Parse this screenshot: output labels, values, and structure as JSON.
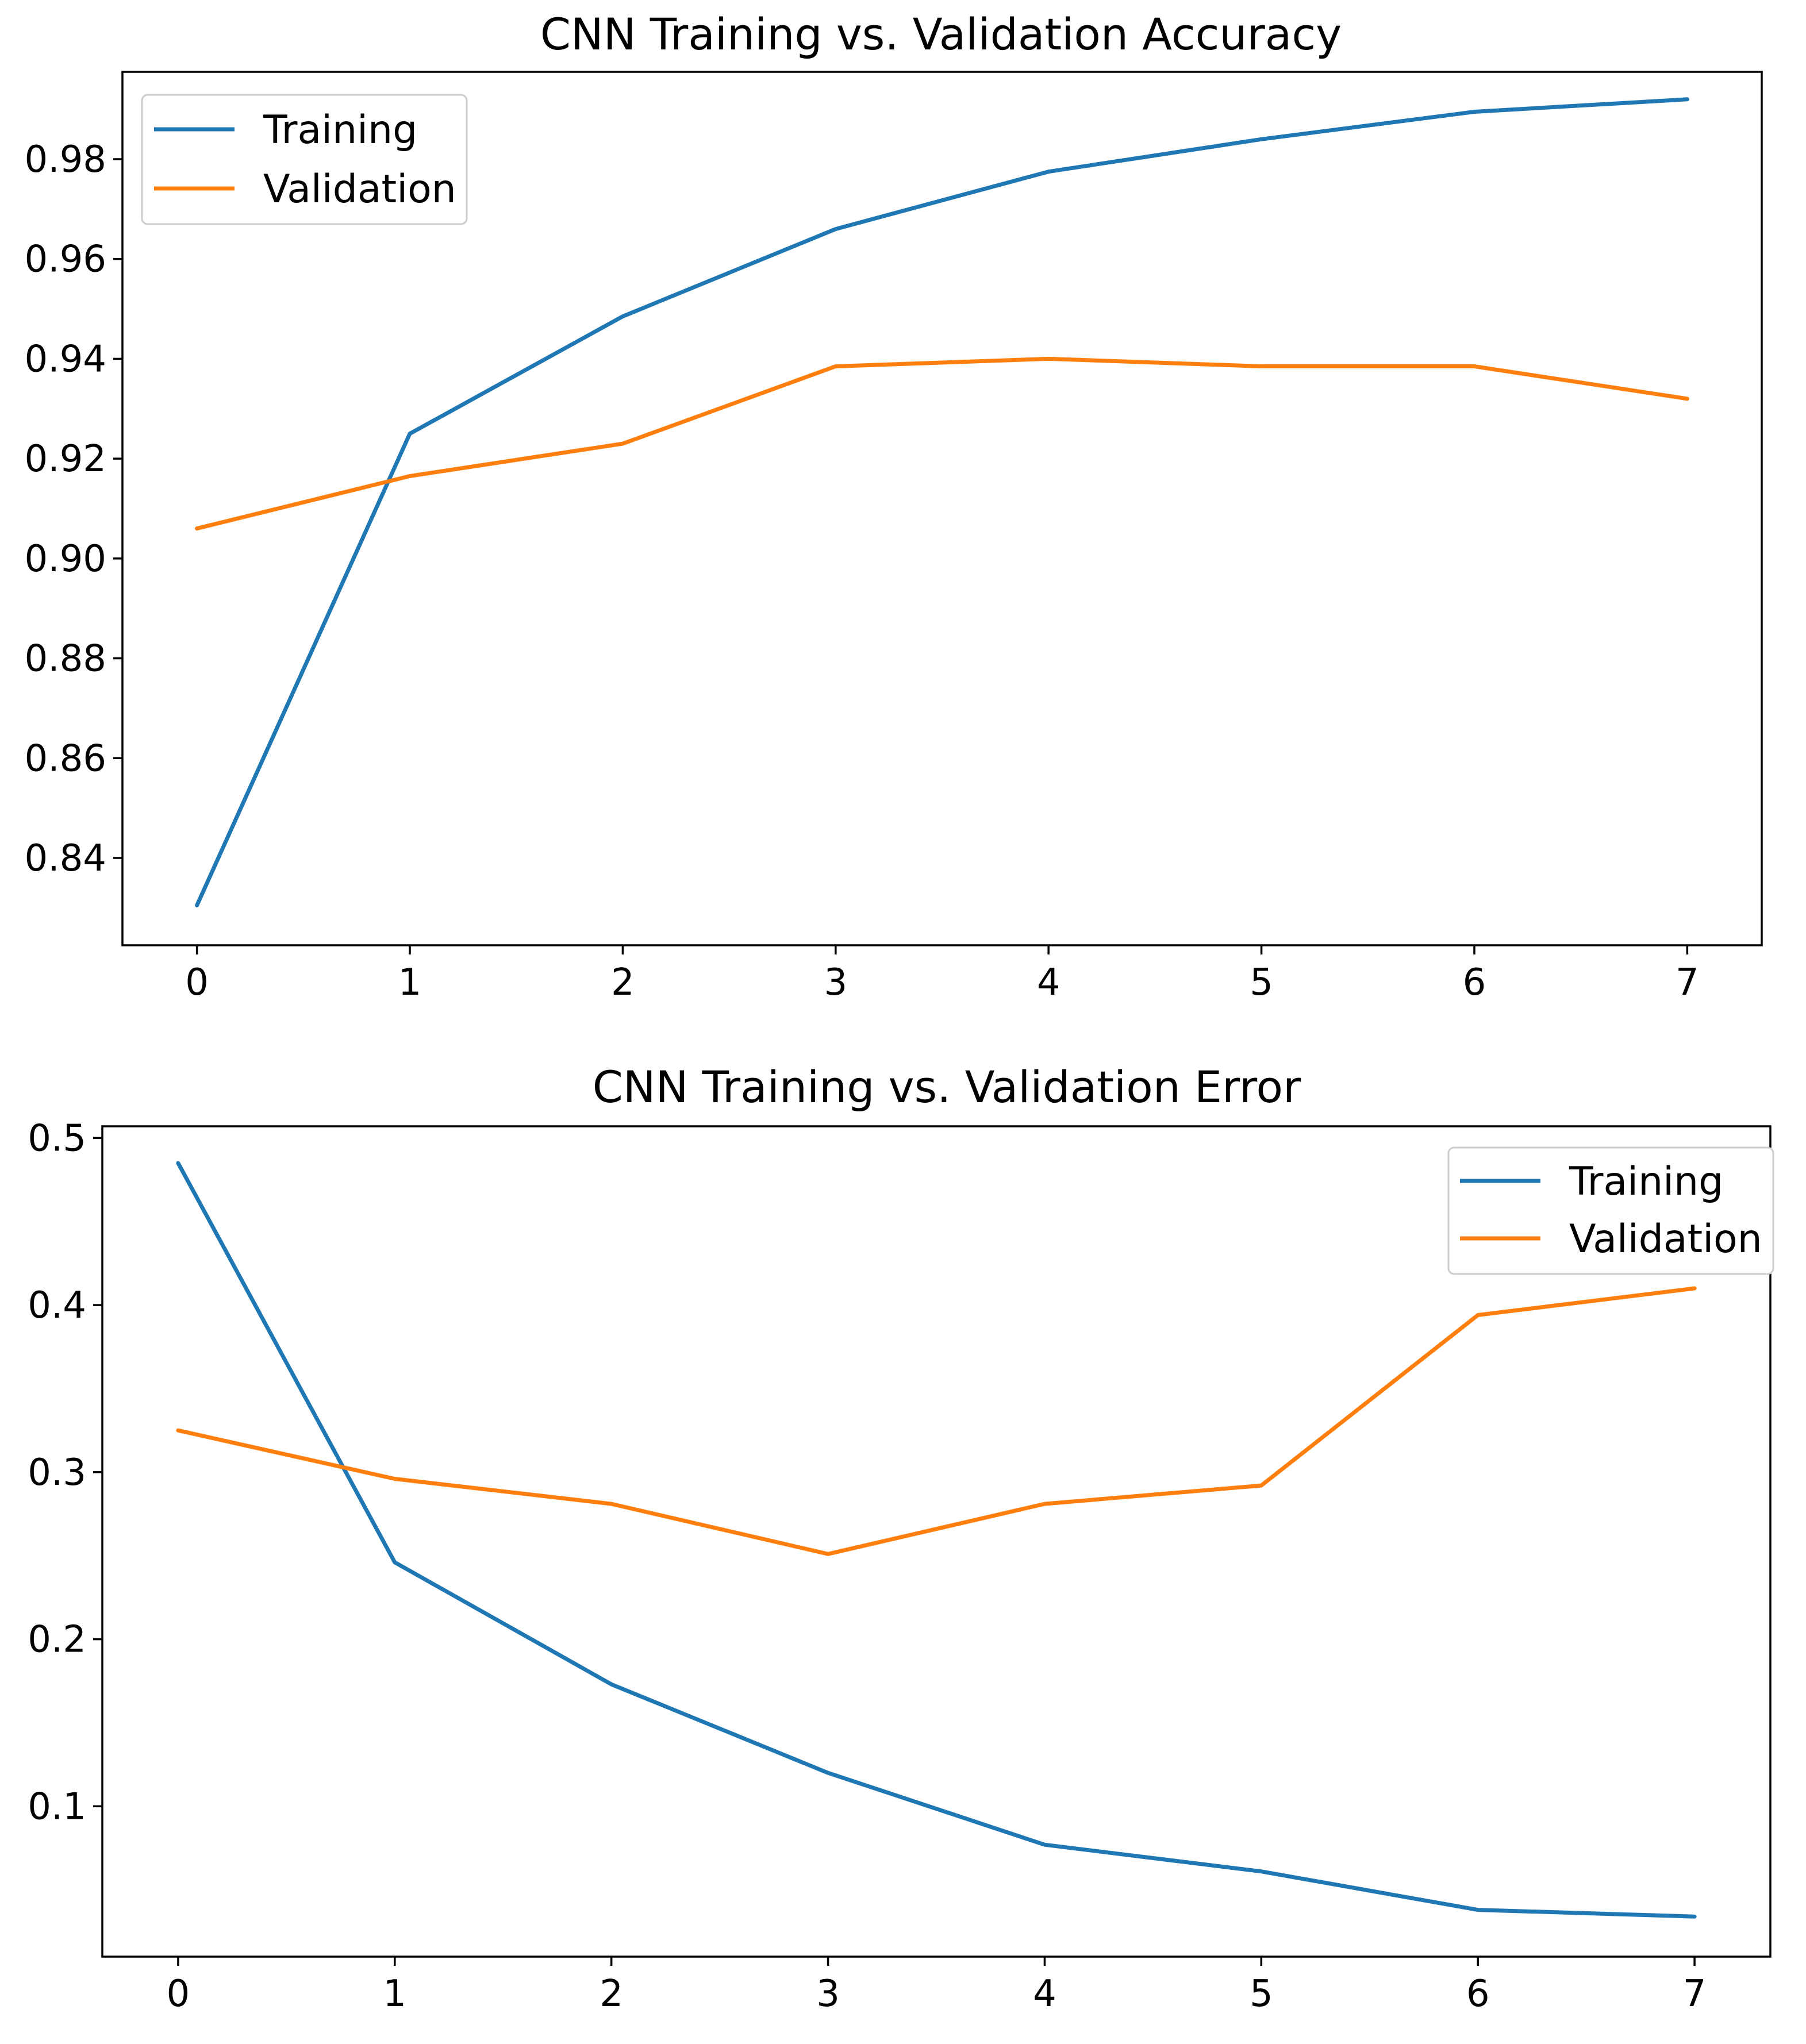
{
  "chart_data": [
    {
      "type": "line",
      "title": "CNN Training vs. Validation Accuracy",
      "xlabel": "",
      "ylabel": "",
      "x": [
        0,
        1,
        2,
        3,
        4,
        5,
        6,
        7
      ],
      "xticks": [
        "0",
        "1",
        "2",
        "3",
        "4",
        "5",
        "6",
        "7"
      ],
      "yticks": [
        "0.84",
        "0.86",
        "0.88",
        "0.90",
        "0.92",
        "0.94",
        "0.96",
        "0.98"
      ],
      "ytick_values": [
        0.84,
        0.86,
        0.88,
        0.9,
        0.92,
        0.94,
        0.96,
        0.98
      ],
      "xlim": [
        -0.35,
        7.35
      ],
      "ylim": [
        0.8225,
        0.9975
      ],
      "grid": false,
      "legend_position": "top-left",
      "series": [
        {
          "name": "Training",
          "color": "#1f77b4",
          "values": [
            0.8305,
            0.925,
            0.9485,
            0.966,
            0.9775,
            0.984,
            0.9895,
            0.992
          ]
        },
        {
          "name": "Validation",
          "color": "#ff7f0e",
          "values": [
            0.906,
            0.9165,
            0.923,
            0.9385,
            0.94,
            0.9385,
            0.9385,
            0.932
          ]
        }
      ]
    },
    {
      "type": "line",
      "title": "CNN Training vs. Validation Error",
      "xlabel": "",
      "ylabel": "",
      "x": [
        0,
        1,
        2,
        3,
        4,
        5,
        6,
        7
      ],
      "xticks": [
        "0",
        "1",
        "2",
        "3",
        "4",
        "5",
        "6",
        "7"
      ],
      "yticks": [
        "0.1",
        "0.2",
        "0.3",
        "0.4",
        "0.5"
      ],
      "ytick_values": [
        0.1,
        0.2,
        0.3,
        0.4,
        0.5
      ],
      "xlim": [
        -0.35,
        7.35
      ],
      "ylim": [
        0.01,
        0.507
      ],
      "grid": false,
      "legend_position": "top-right",
      "series": [
        {
          "name": "Training",
          "color": "#1f77b4",
          "values": [
            0.485,
            0.246,
            0.173,
            0.12,
            0.077,
            0.061,
            0.038,
            0.034
          ]
        },
        {
          "name": "Validation",
          "color": "#ff7f0e",
          "values": [
            0.325,
            0.296,
            0.281,
            0.251,
            0.281,
            0.292,
            0.394,
            0.41
          ]
        }
      ]
    }
  ]
}
